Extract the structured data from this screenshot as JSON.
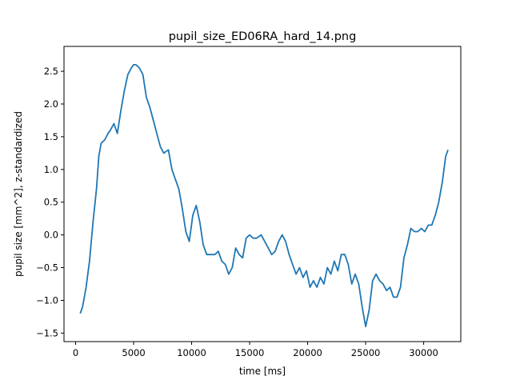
{
  "chart_data": {
    "type": "line",
    "title": "pupil_size_ED06RA_hard_14.png",
    "xlabel": "time [ms]",
    "ylabel": "pupil size [mm^2], z-standardized",
    "xlim": [
      -1000,
      33200
    ],
    "ylim": [
      -1.63,
      2.88
    ],
    "x_ticks": [
      0,
      5000,
      10000,
      15000,
      20000,
      25000,
      30000
    ],
    "x_tick_labels": [
      "0",
      "5000",
      "10000",
      "15000",
      "20000",
      "25000",
      "30000"
    ],
    "y_ticks": [
      -1.5,
      -1.0,
      -0.5,
      0.0,
      0.5,
      1.0,
      1.5,
      2.0,
      2.5
    ],
    "y_tick_labels": [
      "−1.5",
      "−1.0",
      "−0.5",
      "0.0",
      "0.5",
      "1.0",
      "1.5",
      "2.0",
      "2.5"
    ],
    "grid": false,
    "series": [
      {
        "color": "#1f77b4",
        "x": [
          400,
          600,
          900,
          1200,
          1500,
          1800,
          2000,
          2200,
          2500,
          2800,
          3000,
          3300,
          3600,
          3900,
          4200,
          4500,
          4800,
          5000,
          5200,
          5500,
          5800,
          6100,
          6400,
          6700,
          7000,
          7300,
          7600,
          8000,
          8300,
          8600,
          8900,
          9200,
          9500,
          9800,
          10100,
          10400,
          10700,
          11000,
          11300,
          11600,
          12000,
          12300,
          12600,
          12900,
          13200,
          13500,
          13800,
          14100,
          14400,
          14700,
          15000,
          15300,
          15600,
          16000,
          16300,
          16600,
          16900,
          17200,
          17500,
          17800,
          18100,
          18400,
          18700,
          19000,
          19300,
          19600,
          19900,
          20200,
          20500,
          20800,
          21100,
          21400,
          21700,
          22000,
          22300,
          22600,
          22900,
          23200,
          23500,
          23800,
          24100,
          24400,
          24700,
          25000,
          25300,
          25600,
          25900,
          26200,
          26500,
          26800,
          27100,
          27400,
          27700,
          28000,
          28300,
          28600,
          28900,
          29200,
          29500,
          29800,
          30100,
          30400,
          30700,
          31000,
          31300,
          31600,
          31900,
          32100
        ],
        "y": [
          -1.2,
          -1.1,
          -0.8,
          -0.4,
          0.2,
          0.7,
          1.2,
          1.4,
          1.45,
          1.55,
          1.6,
          1.7,
          1.55,
          1.9,
          2.2,
          2.45,
          2.55,
          2.6,
          2.6,
          2.55,
          2.45,
          2.1,
          1.95,
          1.75,
          1.55,
          1.35,
          1.25,
          1.3,
          1.0,
          0.85,
          0.7,
          0.4,
          0.05,
          -0.1,
          0.3,
          0.45,
          0.2,
          -0.15,
          -0.3,
          -0.3,
          -0.3,
          -0.25,
          -0.4,
          -0.45,
          -0.6,
          -0.5,
          -0.2,
          -0.3,
          -0.35,
          -0.05,
          0.0,
          -0.05,
          -0.05,
          0.0,
          -0.1,
          -0.2,
          -0.3,
          -0.25,
          -0.1,
          0.0,
          -0.1,
          -0.3,
          -0.45,
          -0.6,
          -0.5,
          -0.65,
          -0.55,
          -0.8,
          -0.7,
          -0.8,
          -0.65,
          -0.75,
          -0.5,
          -0.6,
          -0.4,
          -0.55,
          -0.3,
          -0.3,
          -0.45,
          -0.75,
          -0.6,
          -0.75,
          -1.1,
          -1.4,
          -1.15,
          -0.7,
          -0.6,
          -0.7,
          -0.75,
          -0.85,
          -0.8,
          -0.95,
          -0.95,
          -0.8,
          -0.35,
          -0.15,
          0.1,
          0.05,
          0.05,
          0.1,
          0.05,
          0.15,
          0.15,
          0.3,
          0.5,
          0.8,
          1.2,
          1.3
        ]
      }
    ]
  }
}
